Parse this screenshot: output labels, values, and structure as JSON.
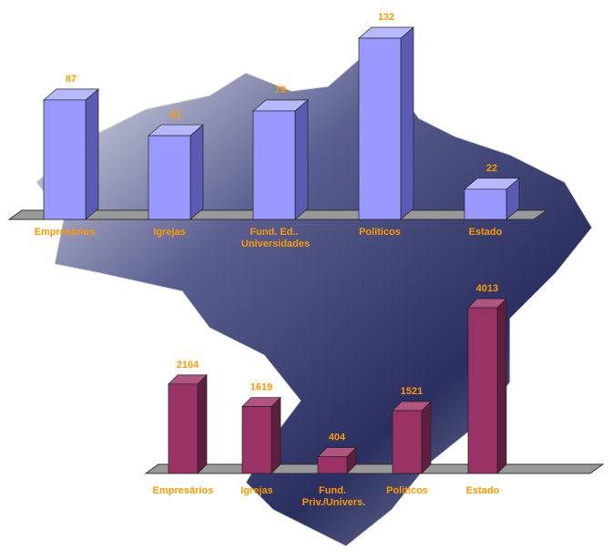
{
  "chart_data": [
    {
      "type": "bar3d",
      "categories": [
        "Empresários",
        "Igrejas",
        "Fund. Ed.. Universidades",
        "Politicos",
        "Estado"
      ],
      "values": [
        87,
        61,
        79,
        132,
        22
      ],
      "color": "#9999ff",
      "side_color": "#5b5bb3",
      "top_color": "#b8b8ff"
    },
    {
      "type": "bar3d",
      "categories": [
        "Empresários",
        "Igrejas",
        "Fund. Priv./Univers.",
        "Politicos",
        "Estado"
      ],
      "values": [
        2164,
        1619,
        404,
        1521,
        4013
      ],
      "color": "#993366",
      "side_color": "#5e1f3f",
      "top_color": "#b05580"
    }
  ]
}
